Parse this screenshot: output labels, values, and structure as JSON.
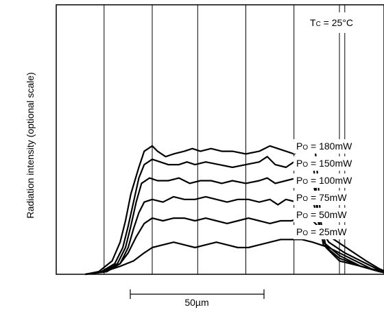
{
  "chart_data": {
    "type": "line",
    "title": "",
    "xlabel": "",
    "ylabel": "Radiation intensity (optional scale)",
    "condition": {
      "symbol": "T",
      "subscript": "C",
      "rest": " = 25°C"
    },
    "scale_bar": {
      "label": "50µm",
      "length_um": 50
    },
    "grid": true,
    "legend_placement": "right",
    "x_unit": "µm",
    "xlim": [
      -60,
      95
    ],
    "ylim": [
      0,
      1.0
    ],
    "colors": {
      "line": "#000000",
      "grid": "#000000",
      "background": "#ffffff"
    },
    "series": [
      {
        "name": "180mW",
        "label_prefix": "P",
        "label_sub": "O",
        "label_rest": " = 180mW",
        "points": [
          [
            -25,
            0
          ],
          [
            -20,
            0.01
          ],
          [
            -15,
            0.05
          ],
          [
            -12,
            0.12
          ],
          [
            -10,
            0.2
          ],
          [
            -8,
            0.3
          ],
          [
            -5,
            0.4
          ],
          [
            -3,
            0.46
          ],
          [
            0,
            0.48
          ],
          [
            2,
            0.46
          ],
          [
            5,
            0.44
          ],
          [
            8,
            0.45
          ],
          [
            12,
            0.46
          ],
          [
            15,
            0.47
          ],
          [
            18,
            0.46
          ],
          [
            22,
            0.47
          ],
          [
            26,
            0.46
          ],
          [
            30,
            0.46
          ],
          [
            35,
            0.45
          ],
          [
            40,
            0.46
          ],
          [
            44,
            0.48
          ],
          [
            47,
            0.47
          ],
          [
            50,
            0.46
          ],
          [
            53,
            0.45
          ],
          [
            57,
            0.47
          ],
          [
            59,
            0.5
          ],
          [
            61,
            0.46
          ],
          [
            62,
            0.35
          ],
          [
            63,
            0.2
          ],
          [
            65,
            0.1
          ],
          [
            70,
            0.05
          ],
          [
            78,
            0.03
          ],
          [
            85,
            0.01
          ],
          [
            90,
            0
          ]
        ]
      },
      {
        "name": "150mW",
        "label_prefix": "P",
        "label_sub": "O",
        "label_rest": " = 150mW",
        "points": [
          [
            -25,
            0
          ],
          [
            -19,
            0.01
          ],
          [
            -14,
            0.04
          ],
          [
            -11,
            0.1
          ],
          [
            -9,
            0.18
          ],
          [
            -7,
            0.27
          ],
          [
            -5,
            0.36
          ],
          [
            -3,
            0.41
          ],
          [
            0,
            0.43
          ],
          [
            3,
            0.42
          ],
          [
            6,
            0.41
          ],
          [
            10,
            0.41
          ],
          [
            13,
            0.42
          ],
          [
            16,
            0.41
          ],
          [
            20,
            0.42
          ],
          [
            25,
            0.41
          ],
          [
            30,
            0.4
          ],
          [
            35,
            0.41
          ],
          [
            40,
            0.42
          ],
          [
            43,
            0.44
          ],
          [
            46,
            0.41
          ],
          [
            50,
            0.4
          ],
          [
            53,
            0.42
          ],
          [
            57,
            0.43
          ],
          [
            60,
            0.42
          ],
          [
            61,
            0.35
          ],
          [
            62,
            0.22
          ],
          [
            64,
            0.11
          ],
          [
            70,
            0.06
          ],
          [
            78,
            0.03
          ],
          [
            85,
            0.01
          ],
          [
            90,
            0
          ]
        ]
      },
      {
        "name": "100mW",
        "label_prefix": "P",
        "label_sub": "O",
        "label_rest": " = 100mW",
        "points": [
          [
            -25,
            0
          ],
          [
            -18,
            0.01
          ],
          [
            -13,
            0.04
          ],
          [
            -10,
            0.1
          ],
          [
            -8,
            0.18
          ],
          [
            -6,
            0.27
          ],
          [
            -4,
            0.34
          ],
          [
            -1,
            0.36
          ],
          [
            2,
            0.35
          ],
          [
            6,
            0.35
          ],
          [
            10,
            0.36
          ],
          [
            14,
            0.34
          ],
          [
            18,
            0.35
          ],
          [
            22,
            0.35
          ],
          [
            26,
            0.34
          ],
          [
            30,
            0.35
          ],
          [
            35,
            0.34
          ],
          [
            40,
            0.35
          ],
          [
            43,
            0.36
          ],
          [
            46,
            0.34
          ],
          [
            50,
            0.35
          ],
          [
            54,
            0.36
          ],
          [
            58,
            0.37
          ],
          [
            60,
            0.36
          ],
          [
            61,
            0.3
          ],
          [
            62,
            0.2
          ],
          [
            64,
            0.12
          ],
          [
            70,
            0.07
          ],
          [
            78,
            0.03
          ],
          [
            85,
            0.01
          ],
          [
            90,
            0
          ]
        ]
      },
      {
        "name": "75mW",
        "label_prefix": "P",
        "label_sub": "O",
        "label_rest": " = 75mW",
        "points": [
          [
            -25,
            0
          ],
          [
            -17,
            0.01
          ],
          [
            -12,
            0.04
          ],
          [
            -9,
            0.1
          ],
          [
            -7,
            0.17
          ],
          [
            -5,
            0.23
          ],
          [
            -3,
            0.27
          ],
          [
            0,
            0.28
          ],
          [
            4,
            0.27
          ],
          [
            8,
            0.29
          ],
          [
            12,
            0.28
          ],
          [
            16,
            0.28
          ],
          [
            20,
            0.29
          ],
          [
            24,
            0.28
          ],
          [
            28,
            0.27
          ],
          [
            32,
            0.28
          ],
          [
            36,
            0.28
          ],
          [
            40,
            0.27
          ],
          [
            44,
            0.28
          ],
          [
            47,
            0.26
          ],
          [
            50,
            0.28
          ],
          [
            54,
            0.27
          ],
          [
            58,
            0.29
          ],
          [
            60,
            0.28
          ],
          [
            61,
            0.24
          ],
          [
            63,
            0.17
          ],
          [
            66,
            0.12
          ],
          [
            72,
            0.08
          ],
          [
            80,
            0.04
          ],
          [
            86,
            0.01
          ],
          [
            90,
            0
          ]
        ]
      },
      {
        "name": "50mW",
        "label_prefix": "P",
        "label_sub": "O",
        "label_rest": " = 50mW",
        "points": [
          [
            -25,
            0
          ],
          [
            -17,
            0.01
          ],
          [
            -12,
            0.04
          ],
          [
            -9,
            0.08
          ],
          [
            -6,
            0.14
          ],
          [
            -3,
            0.19
          ],
          [
            0,
            0.21
          ],
          [
            4,
            0.2
          ],
          [
            8,
            0.21
          ],
          [
            12,
            0.21
          ],
          [
            16,
            0.2
          ],
          [
            20,
            0.21
          ],
          [
            24,
            0.2
          ],
          [
            28,
            0.19
          ],
          [
            32,
            0.2
          ],
          [
            36,
            0.21
          ],
          [
            40,
            0.2
          ],
          [
            44,
            0.19
          ],
          [
            48,
            0.2
          ],
          [
            52,
            0.2
          ],
          [
            56,
            0.21
          ],
          [
            60,
            0.2
          ],
          [
            62,
            0.18
          ],
          [
            65,
            0.15
          ],
          [
            68,
            0.13
          ],
          [
            74,
            0.09
          ],
          [
            80,
            0.05
          ],
          [
            85,
            0.02
          ],
          [
            90,
            0
          ]
        ]
      },
      {
        "name": "25mW",
        "label_prefix": "P",
        "label_sub": "O",
        "label_rest": " = 25mW",
        "points": [
          [
            -25,
            0
          ],
          [
            -18,
            0.01
          ],
          [
            -12,
            0.03
          ],
          [
            -7,
            0.05
          ],
          [
            -3,
            0.08
          ],
          [
            0,
            0.1
          ],
          [
            4,
            0.11
          ],
          [
            8,
            0.12
          ],
          [
            12,
            0.11
          ],
          [
            16,
            0.1
          ],
          [
            20,
            0.11
          ],
          [
            24,
            0.12
          ],
          [
            28,
            0.11
          ],
          [
            32,
            0.1
          ],
          [
            36,
            0.1
          ],
          [
            40,
            0.11
          ],
          [
            44,
            0.12
          ],
          [
            48,
            0.13
          ],
          [
            52,
            0.13
          ],
          [
            56,
            0.13
          ],
          [
            60,
            0.12
          ],
          [
            63,
            0.11
          ],
          [
            66,
            0.1
          ],
          [
            70,
            0.08
          ],
          [
            74,
            0.06
          ],
          [
            78,
            0.04
          ],
          [
            82,
            0.02
          ],
          [
            86,
            0.01
          ],
          [
            90,
            0
          ]
        ]
      }
    ]
  }
}
